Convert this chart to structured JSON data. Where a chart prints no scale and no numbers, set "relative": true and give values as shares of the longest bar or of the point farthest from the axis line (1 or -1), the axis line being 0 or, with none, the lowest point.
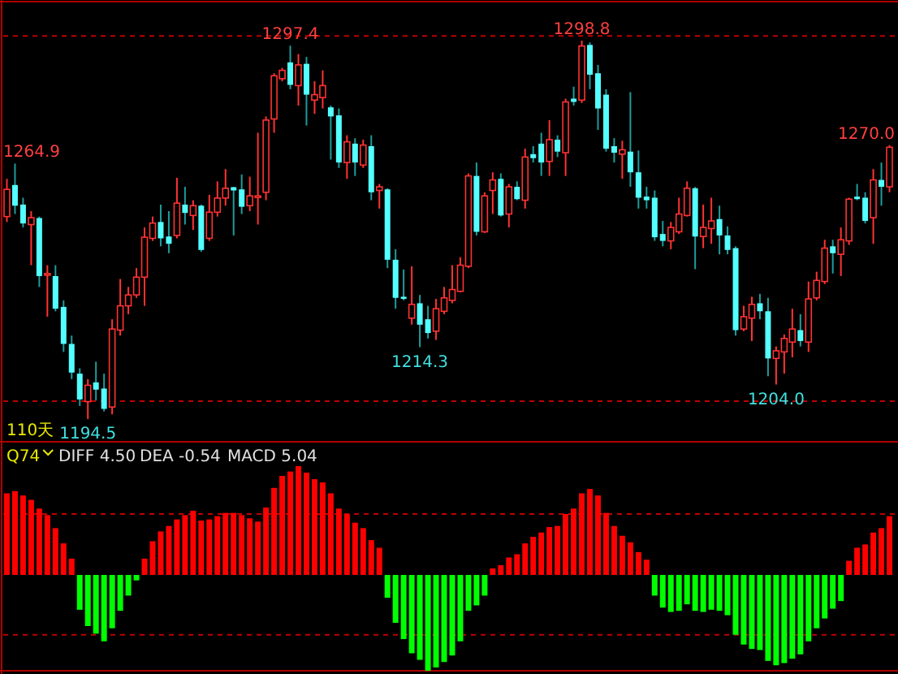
{
  "chart_data": [
    {
      "type": "candlestick",
      "categories": [
        null,
        null,
        null,
        null,
        null,
        null,
        null,
        null,
        null,
        null,
        null,
        null,
        null,
        null,
        null,
        null,
        null,
        null,
        null,
        null,
        null,
        null,
        null,
        null,
        null,
        null,
        null,
        null,
        null,
        null,
        null,
        null,
        null,
        null,
        null,
        null,
        null,
        null,
        null,
        null,
        null,
        null,
        null,
        null,
        null,
        null,
        null,
        null,
        null,
        null,
        null,
        null,
        null,
        null,
        null,
        null,
        null,
        null,
        null,
        null,
        null,
        null,
        null,
        null,
        null,
        null,
        null,
        null,
        null,
        null,
        null,
        null,
        null,
        null,
        null,
        null,
        null,
        null,
        null,
        null,
        null,
        null,
        null,
        null,
        null,
        null,
        null,
        null,
        null,
        null,
        null,
        null,
        null,
        null,
        null,
        null,
        null,
        null,
        null,
        null,
        null,
        null,
        null,
        null,
        null,
        null,
        null,
        null,
        null,
        null
      ],
      "ohlc": [
        [
          1250.3,
          1260.7,
          1248.8,
          1257.8
        ],
        [
          1259.0,
          1264.9,
          1251.0,
          1253.3
        ],
        [
          1253.6,
          1255.5,
          1247.3,
          1248.4
        ],
        [
          1248.1,
          1251.8,
          1236.9,
          1250.0
        ],
        [
          1249.9,
          1250.3,
          1230.9,
          1233.9
        ],
        [
          1234.3,
          1236.9,
          1222.7,
          1234.6
        ],
        [
          1233.9,
          1236.9,
          1224.2,
          1224.9
        ],
        [
          1225.4,
          1227.2,
          1213.0,
          1215.2
        ],
        [
          1215.2,
          1217.5,
          1205.5,
          1207.3
        ],
        [
          1207.0,
          1208.5,
          1198.1,
          1199.9
        ],
        [
          1199.3,
          1205.5,
          1194.5,
          1203.8
        ],
        [
          1204.6,
          1210.3,
          1199.6,
          1202.6
        ],
        [
          1202.9,
          1207.0,
          1196.6,
          1197.3
        ],
        [
          1197.8,
          1222.0,
          1195.8,
          1219.3
        ],
        [
          1219.0,
          1233.1,
          1217.5,
          1225.7
        ],
        [
          1225.7,
          1230.9,
          1223.4,
          1228.7
        ],
        [
          1228.7,
          1236.1,
          1227.9,
          1233.6
        ],
        [
          1233.6,
          1247.3,
          1225.7,
          1244.6
        ],
        [
          1244.3,
          1250.3,
          1243.6,
          1248.5
        ],
        [
          1248.8,
          1253.6,
          1242.1,
          1244.3
        ],
        [
          1244.8,
          1251.8,
          1240.2,
          1242.8
        ],
        [
          1245.1,
          1261.0,
          1244.3,
          1254.0
        ],
        [
          1253.6,
          1258.5,
          1248.1,
          1251.3
        ],
        [
          1250.6,
          1254.8,
          1246.6,
          1253.3
        ],
        [
          1253.3,
          1253.6,
          1240.6,
          1241.1
        ],
        [
          1244.3,
          1256.3,
          1243.6,
          1251.5
        ],
        [
          1251.5,
          1260.0,
          1250.3,
          1255.4
        ],
        [
          1255.4,
          1263.4,
          1253.3,
          1258.1
        ],
        [
          1258.4,
          1258.5,
          1245.1,
          1257.5
        ],
        [
          1257.8,
          1261.9,
          1251.0,
          1253.0
        ],
        [
          1253.3,
          1261.3,
          1251.8,
          1256.0
        ],
        [
          1255.8,
          1273.4,
          1248.1,
          1256.0
        ],
        [
          1257.0,
          1277.9,
          1254.8,
          1276.9
        ],
        [
          1277.2,
          1289.8,
          1273.4,
          1289.1
        ],
        [
          1288.3,
          1291.3,
          1287.6,
          1290.6
        ],
        [
          1292.8,
          1297.4,
          1285.4,
          1286.6
        ],
        [
          1286.4,
          1295.1,
          1280.9,
          1292.1
        ],
        [
          1292.4,
          1294.3,
          1275.4,
          1283.9
        ],
        [
          1282.4,
          1287.6,
          1278.6,
          1283.9
        ],
        [
          1283.1,
          1290.6,
          1280.1,
          1286.4
        ],
        [
          1280.4,
          1280.9,
          1266.0,
          1277.9
        ],
        [
          1278.2,
          1280.1,
          1263.7,
          1265.2
        ],
        [
          1265.2,
          1272.7,
          1260.7,
          1270.9
        ],
        [
          1270.4,
          1271.9,
          1261.5,
          1265.2
        ],
        [
          1264.5,
          1271.5,
          1263.7,
          1270.0
        ],
        [
          1269.7,
          1272.7,
          1254.8,
          1257.0
        ],
        [
          1257.5,
          1259.3,
          1252.5,
          1258.5
        ],
        [
          1257.8,
          1258.1,
          1236.1,
          1238.4
        ],
        [
          1238.4,
          1241.3,
          1224.9,
          1227.9
        ],
        [
          1228.2,
          1235.7,
          1227.2,
          1227.6
        ],
        [
          1222.3,
          1236.6,
          1220.5,
          1226.1
        ],
        [
          1226.4,
          1228.7,
          1214.3,
          1220.5
        ],
        [
          1222.0,
          1225.7,
          1216.7,
          1218.2
        ],
        [
          1218.7,
          1227.6,
          1216.3,
          1224.9
        ],
        [
          1224.2,
          1230.9,
          1223.4,
          1227.9
        ],
        [
          1227.2,
          1236.9,
          1226.4,
          1230.2
        ],
        [
          1229.7,
          1239.1,
          1229.4,
          1236.9
        ],
        [
          1236.6,
          1262.2,
          1236.1,
          1261.5
        ],
        [
          1261.5,
          1265.2,
          1245.1,
          1246.1
        ],
        [
          1246.1,
          1257.0,
          1245.8,
          1256.0
        ],
        [
          1257.5,
          1262.5,
          1251.0,
          1260.4
        ],
        [
          1260.7,
          1262.2,
          1250.3,
          1250.6
        ],
        [
          1251.0,
          1259.3,
          1247.3,
          1258.5
        ],
        [
          1258.5,
          1260.0,
          1254.8,
          1255.1
        ],
        [
          1254.8,
          1269.0,
          1252.5,
          1266.7
        ],
        [
          1267.5,
          1269.7,
          1265.2,
          1266.4
        ],
        [
          1270.4,
          1273.4,
          1261.5,
          1265.2
        ],
        [
          1265.5,
          1276.9,
          1261.5,
          1271.5
        ],
        [
          1271.5,
          1272.7,
          1266.7,
          1268.2
        ],
        [
          1267.9,
          1282.8,
          1261.5,
          1281.9
        ],
        [
          1282.8,
          1286.1,
          1280.9,
          1281.9
        ],
        [
          1282.4,
          1298.8,
          1281.6,
          1297.3
        ],
        [
          1297.6,
          1298.3,
          1285.4,
          1289.4
        ],
        [
          1289.8,
          1292.1,
          1274.2,
          1280.1
        ],
        [
          1283.9,
          1285.4,
          1268.2,
          1269.0
        ],
        [
          1269.7,
          1271.9,
          1265.2,
          1267.9
        ],
        [
          1267.5,
          1271.2,
          1260.7,
          1268.7
        ],
        [
          1268.2,
          1284.6,
          1258.5,
          1262.5
        ],
        [
          1262.5,
          1268.5,
          1252.5,
          1255.5
        ],
        [
          1255.8,
          1258.5,
          1252.5,
          1254.8
        ],
        [
          1255.5,
          1257.5,
          1243.6,
          1244.6
        ],
        [
          1245.5,
          1249.1,
          1242.1,
          1243.6
        ],
        [
          1243.6,
          1248.8,
          1241.3,
          1247.3
        ],
        [
          1246.1,
          1255.5,
          1245.5,
          1251.0
        ],
        [
          1250.6,
          1260.0,
          1250.3,
          1258.1
        ],
        [
          1258.1,
          1258.5,
          1235.8,
          1244.8
        ],
        [
          1244.8,
          1253.6,
          1241.6,
          1247.3
        ],
        [
          1247.0,
          1255.5,
          1242.8,
          1249.1
        ],
        [
          1249.6,
          1253.3,
          1239.9,
          1245.1
        ],
        [
          1245.1,
          1247.6,
          1239.9,
          1241.1
        ],
        [
          1241.6,
          1242.1,
          1217.5,
          1219.0
        ],
        [
          1219.3,
          1225.7,
          1218.7,
          1222.7
        ],
        [
          1222.3,
          1228.2,
          1216.0,
          1226.1
        ],
        [
          1226.4,
          1229.0,
          1222.0,
          1224.2
        ],
        [
          1224.2,
          1227.9,
          1206.3,
          1211.2
        ],
        [
          1211.2,
          1214.5,
          1204.0,
          1213.3
        ],
        [
          1213.0,
          1217.8,
          1207.0,
          1216.7
        ],
        [
          1215.7,
          1224.9,
          1211.5,
          1219.3
        ],
        [
          1219.0,
          1223.4,
          1214.5,
          1216.0
        ],
        [
          1215.7,
          1232.4,
          1213.0,
          1227.6
        ],
        [
          1227.9,
          1235.1,
          1227.2,
          1232.7
        ],
        [
          1232.4,
          1243.9,
          1231.7,
          1241.6
        ],
        [
          1242.1,
          1243.9,
          1234.6,
          1240.2
        ],
        [
          1239.9,
          1247.3,
          1233.9,
          1243.9
        ],
        [
          1243.6,
          1255.5,
          1242.5,
          1255.1
        ],
        [
          1255.8,
          1259.3,
          1254.8,
          1255.1
        ],
        [
          1255.5,
          1257.0,
          1248.4,
          1249.1
        ],
        [
          1250.0,
          1263.4,
          1242.8,
          1260.4
        ],
        [
          1260.4,
          1265.2,
          1253.3,
          1258.5
        ],
        [
          1258.5,
          1270.0,
          1257.0,
          1269.4
        ]
      ],
      "annotations": [
        "110天",
        "1264.9",
        "1297.4",
        "1298.8",
        "1270.0",
        "1194.5",
        "1214.3",
        "1204.0"
      ],
      "ref_lines": [
        {
          "axis": "y",
          "value": 1300.1,
          "color": "#c00000",
          "line_style": "dashed"
        },
        {
          "axis": "y",
          "value": 1199.4,
          "color": "#c00000",
          "line_style": "dashed"
        }
      ]
    },
    {
      "type": "bar",
      "relative": true,
      "categories": [
        null,
        null,
        null,
        null,
        null,
        null,
        null,
        null,
        null,
        null,
        null,
        null,
        null,
        null,
        null,
        null,
        null,
        null,
        null,
        null,
        null,
        null,
        null,
        null,
        null,
        null,
        null,
        null,
        null,
        null,
        null,
        null,
        null,
        null,
        null,
        null,
        null,
        null,
        null,
        null,
        null,
        null,
        null,
        null,
        null,
        null,
        null,
        null,
        null,
        null,
        null,
        null,
        null,
        null,
        null,
        null,
        null,
        null,
        null,
        null,
        null,
        null,
        null,
        null,
        null,
        null,
        null,
        null,
        null,
        null,
        null,
        null,
        null,
        null,
        null,
        null,
        null,
        null,
        null,
        null,
        null,
        null,
        null,
        null,
        null,
        null,
        null,
        null,
        null,
        null,
        null,
        null,
        null,
        null,
        null,
        null,
        null,
        null,
        null,
        null,
        null,
        null,
        null,
        null,
        null,
        null,
        null,
        null,
        null,
        null
      ],
      "values": [
        0.75,
        0.77,
        0.73,
        0.69,
        0.61,
        0.55,
        0.43,
        0.29,
        0.15,
        -0.32,
        -0.47,
        -0.54,
        -0.61,
        -0.49,
        -0.33,
        -0.19,
        -0.05,
        0.15,
        0.31,
        0.4,
        0.45,
        0.51,
        0.55,
        0.59,
        0.5,
        0.51,
        0.54,
        0.57,
        0.57,
        0.55,
        0.52,
        0.49,
        0.62,
        0.8,
        0.91,
        0.95,
        1,
        0.94,
        0.88,
        0.85,
        0.75,
        0.61,
        0.56,
        0.48,
        0.43,
        0.32,
        0.25,
        -0.21,
        -0.44,
        -0.59,
        -0.72,
        -0.78,
        -0.88,
        -0.85,
        -0.8,
        -0.74,
        -0.61,
        -0.33,
        -0.28,
        -0.19,
        0.06,
        0.09,
        0.16,
        0.19,
        0.29,
        0.35,
        0.39,
        0.44,
        0.45,
        0.56,
        0.61,
        0.75,
        0.79,
        0.73,
        0.57,
        0.45,
        0.36,
        0.3,
        0.21,
        0.14,
        -0.19,
        -0.3,
        -0.34,
        -0.33,
        -0.27,
        -0.33,
        -0.34,
        -0.32,
        -0.33,
        -0.37,
        -0.55,
        -0.64,
        -0.68,
        -0.69,
        -0.79,
        -0.83,
        -0.81,
        -0.77,
        -0.73,
        -0.61,
        -0.49,
        -0.4,
        -0.31,
        -0.24,
        0.13,
        0.25,
        0.28,
        0.39,
        0.43,
        0.54
      ],
      "colors": [
        "#ff0000",
        "#ff0000",
        "#ff0000",
        "#ff0000",
        "#ff0000",
        "#ff0000",
        "#ff0000",
        "#ff0000",
        "#ff0000",
        "#00ff00",
        "#00ff00",
        "#00ff00",
        "#00ff00",
        "#00ff00",
        "#00ff00",
        "#00ff00",
        "#00ff00",
        "#ff0000",
        "#ff0000",
        "#ff0000",
        "#ff0000",
        "#ff0000",
        "#ff0000",
        "#ff0000",
        "#ff0000",
        "#ff0000",
        "#ff0000",
        "#ff0000",
        "#ff0000",
        "#ff0000",
        "#ff0000",
        "#ff0000",
        "#ff0000",
        "#ff0000",
        "#ff0000",
        "#ff0000",
        "#ff0000",
        "#ff0000",
        "#ff0000",
        "#ff0000",
        "#ff0000",
        "#ff0000",
        "#ff0000",
        "#ff0000",
        "#ff0000",
        "#ff0000",
        "#ff0000",
        "#00ff00",
        "#00ff00",
        "#00ff00",
        "#00ff00",
        "#00ff00",
        "#00ff00",
        "#00ff00",
        "#00ff00",
        "#00ff00",
        "#00ff00",
        "#00ff00",
        "#00ff00",
        "#00ff00",
        "#ff0000",
        "#ff0000",
        "#ff0000",
        "#ff0000",
        "#ff0000",
        "#ff0000",
        "#ff0000",
        "#ff0000",
        "#ff0000",
        "#ff0000",
        "#ff0000",
        "#ff0000",
        "#ff0000",
        "#ff0000",
        "#ff0000",
        "#ff0000",
        "#ff0000",
        "#ff0000",
        "#ff0000",
        "#ff0000",
        "#00ff00",
        "#00ff00",
        "#00ff00",
        "#00ff00",
        "#00ff00",
        "#00ff00",
        "#00ff00",
        "#00ff00",
        "#00ff00",
        "#00ff00",
        "#00ff00",
        "#00ff00",
        "#00ff00",
        "#00ff00",
        "#00ff00",
        "#00ff00",
        "#00ff00",
        "#00ff00",
        "#00ff00",
        "#00ff00",
        "#00ff00",
        "#00ff00",
        "#00ff00",
        "#00ff00",
        "#ff0000",
        "#ff0000",
        "#ff0000",
        "#ff0000",
        "#ff0000",
        "#ff0000"
      ],
      "annotations": [
        "Q74",
        "DIFF 4.50",
        "DEA -0.54",
        "MACD 5.04"
      ],
      "ref_lines": [
        {
          "axis": "y",
          "value": 0.56,
          "color": "#c00000",
          "line_style": "dashed"
        },
        {
          "axis": "y",
          "value": -0.55,
          "color": "#c00000",
          "line_style": "dashed"
        }
      ]
    }
  ]
}
